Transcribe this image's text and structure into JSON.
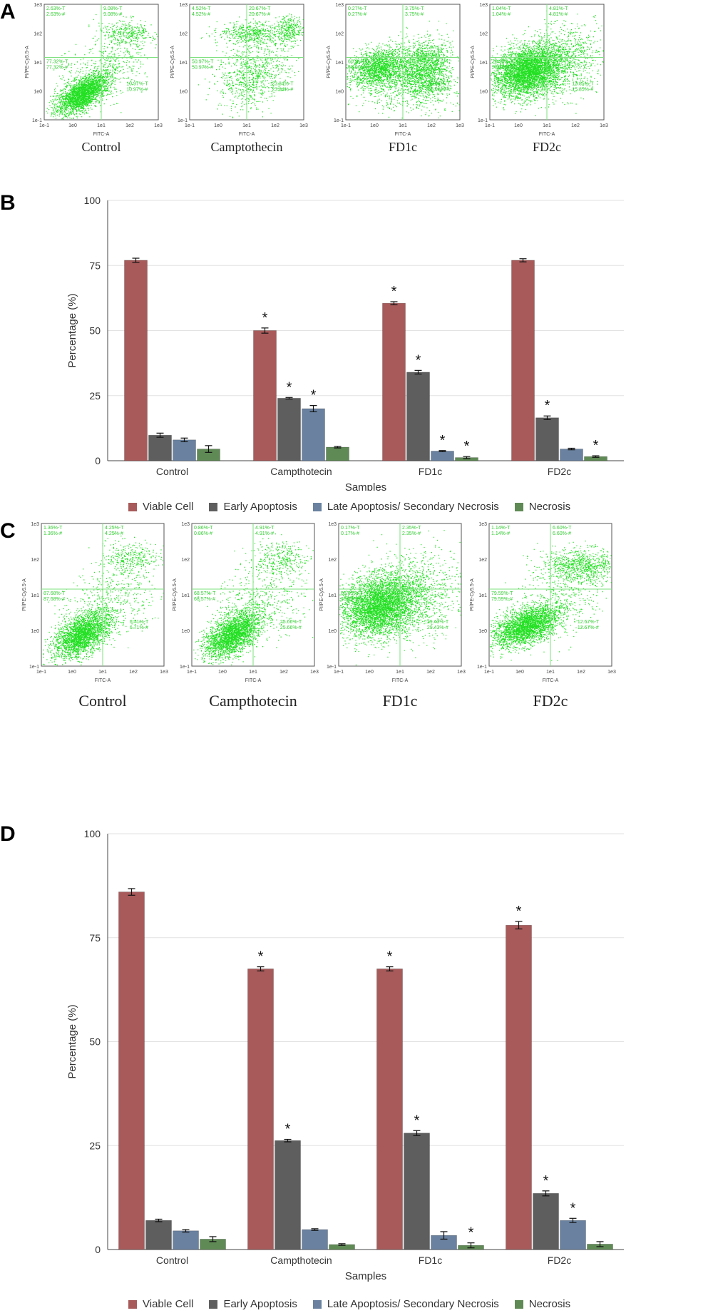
{
  "panels": {
    "A": "A",
    "B": "B",
    "C": "C",
    "D": "D"
  },
  "flow_axis": {
    "xlabel": "FITC-A",
    "ylabel": "PI/PE-Cy5.5-A",
    "x_ticks": [
      "1e-1",
      "1e0",
      "1e1",
      "1e2",
      "1e3"
    ],
    "y_ticks": [
      "1e-1",
      "1e0",
      "1e1",
      "1e2",
      "1e3"
    ],
    "dot_color": "#22e022",
    "gate_color": "#7de07d",
    "text_color": "#33cc33"
  },
  "flow_A": [
    {
      "caption": "Control",
      "cluster": "low-left",
      "q_ul": [
        "2.63%-T",
        "2.63%-#"
      ],
      "q_ur": [
        "9.08%-T",
        "9.08%-#"
      ],
      "q_ll": [
        "77.32%-T",
        "77.32%-#"
      ],
      "q_lr": [
        "10.97%-T",
        "10.97%-#"
      ]
    },
    {
      "caption": "Camptothecin",
      "cluster": "split",
      "q_ul": [
        "4.52%-T",
        "4.52%-#"
      ],
      "q_ur": [
        "20.67%-T",
        "20.67%-#"
      ],
      "q_ll": [
        "50.97%-T",
        "50.97%-#"
      ],
      "q_lr": [
        "23.84%-T",
        "23.84%-#"
      ]
    },
    {
      "caption": "FD1c",
      "cluster": "mid-spread",
      "q_ul": [
        "0.27%-T",
        "0.27%-#"
      ],
      "q_ur": [
        "3.75%-T",
        "3.75%-#"
      ],
      "q_ll": [
        "60.91%-T",
        "60.91%-#"
      ],
      "q_lr": [
        "35.06%-T",
        "35.06%-#"
      ]
    },
    {
      "caption": "FD2c",
      "cluster": "big-left",
      "q_ul": [
        "1.04%-T",
        "1.04%-#"
      ],
      "q_ur": [
        "4.81%-T",
        "4.81%-#"
      ],
      "q_ll": [
        "78.30%-T",
        "78.30%-#"
      ],
      "q_lr": [
        "15.85%-T",
        "15.85%-#"
      ]
    }
  ],
  "flow_C": [
    {
      "caption": "Control",
      "cluster": "low-left",
      "q_ul": [
        "1.36%-T",
        "1.36%-#"
      ],
      "q_ur": [
        "4.25%-T",
        "4.25%-#"
      ],
      "q_ll": [
        "87.68%-T",
        "87.68%-#"
      ],
      "q_lr": [
        "6.71%-T",
        "6.71%-#"
      ]
    },
    {
      "caption": "Campthotecin",
      "cluster": "low-left",
      "q_ul": [
        "0.86%-T",
        "0.86%-#"
      ],
      "q_ur": [
        "4.91%-T",
        "4.91%-#"
      ],
      "q_ll": [
        "68.57%-T",
        "68.57%-#"
      ],
      "q_lr": [
        "25.66%-T",
        "25.66%-#"
      ]
    },
    {
      "caption": "FD1c",
      "cluster": "big-left",
      "q_ul": [
        "0.17%-T",
        "0.17%-#"
      ],
      "q_ur": [
        "2.35%-T",
        "2.35%-#"
      ],
      "q_ll": [
        "68.05%-T",
        "68.05%-#"
      ],
      "q_lr": [
        "29.43%-T",
        "29.43%-#"
      ]
    },
    {
      "caption": "FD2c",
      "cluster": "upper-too",
      "q_ul": [
        "1.14%-T",
        "1.14%-#"
      ],
      "q_ur": [
        "6.60%-T",
        "6.60%-#"
      ],
      "q_ll": [
        "79.59%-T",
        "79.59%-#"
      ],
      "q_lr": [
        "12.67%-T",
        "12.67%-#"
      ]
    }
  ],
  "chart_data": [
    {
      "type": "bar",
      "panel": "B",
      "categories": [
        "Control",
        "Campthotecin",
        "FD1c",
        "FD2c"
      ],
      "xlabel": "Samples",
      "ylabel": "Percentage (%)",
      "ylim": [
        0,
        100
      ],
      "yticks": [
        0,
        25,
        50,
        75,
        100
      ],
      "grid": true,
      "series": [
        {
          "name": "Viable Cell",
          "color": "#a85a5a",
          "values": [
            77,
            50,
            60.5,
            77
          ],
          "errors": [
            0.8,
            1.0,
            0.6,
            0.6
          ],
          "sig": [
            false,
            true,
            true,
            false
          ]
        },
        {
          "name": "Early Apoptosis",
          "color": "#5e5e5e",
          "values": [
            9.8,
            24,
            34,
            16.5
          ],
          "errors": [
            0.8,
            0.3,
            0.7,
            0.7
          ],
          "sig": [
            false,
            true,
            true,
            true
          ]
        },
        {
          "name": "Late Apoptosis/ Secondary Necrosis",
          "color": "#6a82a0",
          "values": [
            8,
            20,
            3.7,
            4.5
          ],
          "errors": [
            0.7,
            1.2,
            0.2,
            0.3
          ],
          "sig": [
            false,
            true,
            true,
            false
          ]
        },
        {
          "name": "Necrosis",
          "color": "#5f8a55",
          "values": [
            4.5,
            5.2,
            1.2,
            1.6
          ],
          "errors": [
            1.3,
            0.3,
            0.4,
            0.3
          ],
          "sig": [
            false,
            false,
            true,
            true
          ]
        }
      ],
      "sig_marker": "*"
    },
    {
      "type": "bar",
      "panel": "D",
      "categories": [
        "Control",
        "Campthotecin",
        "FD1c",
        "FD2c"
      ],
      "xlabel": "Samples",
      "ylabel": "Percentage (%)",
      "ylim": [
        0,
        100
      ],
      "yticks": [
        0,
        25,
        50,
        75,
        100
      ],
      "grid": true,
      "series": [
        {
          "name": "Viable Cell",
          "color": "#a85a5a",
          "values": [
            86,
            67.5,
            67.5,
            78
          ],
          "errors": [
            0.8,
            0.5,
            0.5,
            0.9
          ],
          "sig": [
            false,
            true,
            true,
            true
          ]
        },
        {
          "name": "Early Apoptosis",
          "color": "#5e5e5e",
          "values": [
            7,
            26.2,
            28,
            13.5
          ],
          "errors": [
            0.3,
            0.3,
            0.6,
            0.6
          ],
          "sig": [
            false,
            true,
            true,
            true
          ]
        },
        {
          "name": "Late Apoptosis/ Secondary Necrosis",
          "color": "#6a82a0",
          "values": [
            4.5,
            4.8,
            3.4,
            7
          ],
          "errors": [
            0.3,
            0.2,
            0.9,
            0.5
          ],
          "sig": [
            false,
            false,
            false,
            true
          ]
        },
        {
          "name": "Necrosis",
          "color": "#5f8a55",
          "values": [
            2.5,
            1.2,
            1.0,
            1.3
          ],
          "errors": [
            0.6,
            0.2,
            0.6,
            0.6
          ],
          "sig": [
            false,
            false,
            true,
            false
          ]
        }
      ],
      "sig_marker": "*"
    }
  ]
}
